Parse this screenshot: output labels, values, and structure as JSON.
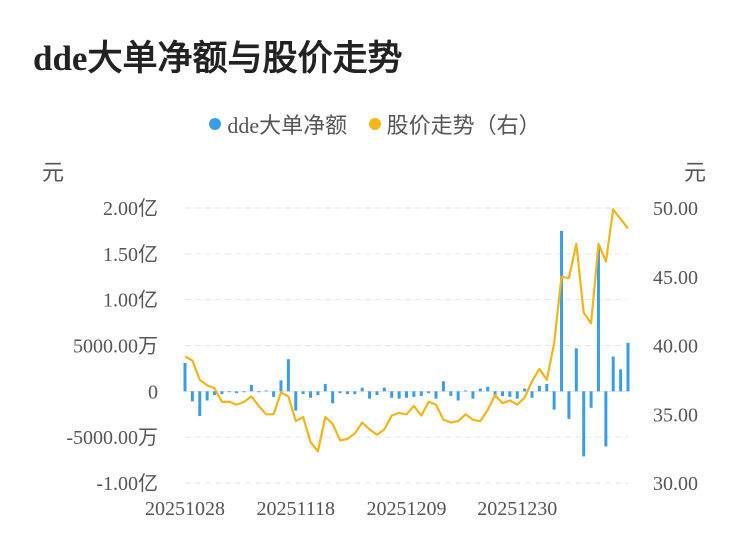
{
  "title": "dde大单净额与股价走势",
  "legend": {
    "series1": "dde大单净额",
    "series2": "股价走势（右）"
  },
  "units": {
    "left": "元",
    "right": "元"
  },
  "colors": {
    "bar": "#3a9ee6",
    "line": "#f5b418",
    "grid": "#e6e6e6"
  },
  "chart_data": {
    "type": "bar+line",
    "left_axis": {
      "ticks": [
        2,
        1.5,
        1,
        0.5,
        0,
        -0.5,
        -1
      ],
      "tick_labels": [
        "2.00亿",
        "1.50亿",
        "1.00亿",
        "5000.00万",
        "0",
        "-5000.00万",
        "-1.00亿"
      ],
      "range": [
        -1,
        2
      ],
      "unit": "亿元"
    },
    "right_axis": {
      "ticks": [
        50,
        45,
        40,
        35,
        30
      ],
      "tick_labels": [
        "50.00",
        "45.00",
        "40.00",
        "35.00",
        "30.00"
      ],
      "range": [
        30,
        50
      ]
    },
    "x_tick_labels": [
      {
        "label": "20251028",
        "index": 0
      },
      {
        "label": "20251118",
        "index": 15
      },
      {
        "label": "20251209",
        "index": 30
      },
      {
        "label": "20251230",
        "index": 45
      }
    ],
    "grid": true,
    "series": [
      {
        "name": "dde大单净额",
        "type": "bar",
        "axis": "left",
        "values": [
          0.31,
          -0.11,
          -0.27,
          -0.1,
          -0.04,
          -0.03,
          -0.01,
          -0.02,
          -0.01,
          0.07,
          -0.01,
          0.01,
          -0.06,
          0.12,
          0.35,
          -0.21,
          -0.03,
          -0.07,
          -0.04,
          0.08,
          -0.13,
          -0.02,
          -0.03,
          -0.03,
          0.04,
          -0.08,
          -0.04,
          0.04,
          -0.07,
          -0.08,
          -0.07,
          -0.06,
          -0.05,
          -0.02,
          -0.08,
          0.11,
          -0.05,
          -0.1,
          0.01,
          -0.08,
          0.03,
          0.05,
          -0.07,
          -0.05,
          -0.06,
          -0.08,
          0.03,
          -0.07,
          0.06,
          0.08,
          -0.2,
          1.75,
          -0.3,
          0.47,
          -0.71,
          -0.18,
          1.56,
          -0.6,
          0.38,
          0.24,
          0.53
        ]
      },
      {
        "name": "股价走势（右）",
        "type": "line",
        "axis": "right",
        "values": [
          39.2,
          38.9,
          37.5,
          37.1,
          36.9,
          35.9,
          35.9,
          35.7,
          35.9,
          36.3,
          35.6,
          35.0,
          35.0,
          36.6,
          36.3,
          34.5,
          34.8,
          33.0,
          32.3,
          34.8,
          34.3,
          33.1,
          33.2,
          33.6,
          34.4,
          33.9,
          33.5,
          33.9,
          34.9,
          35.1,
          35.0,
          35.6,
          34.9,
          35.9,
          35.7,
          34.6,
          34.4,
          34.5,
          35.0,
          34.6,
          34.5,
          35.3,
          36.4,
          35.8,
          36.0,
          35.7,
          36.2,
          37.4,
          38.3,
          37.5,
          40.2,
          45.0,
          44.9,
          47.4,
          42.4,
          41.6,
          47.4,
          46.1,
          49.9,
          49.2,
          48.5
        ]
      }
    ]
  }
}
